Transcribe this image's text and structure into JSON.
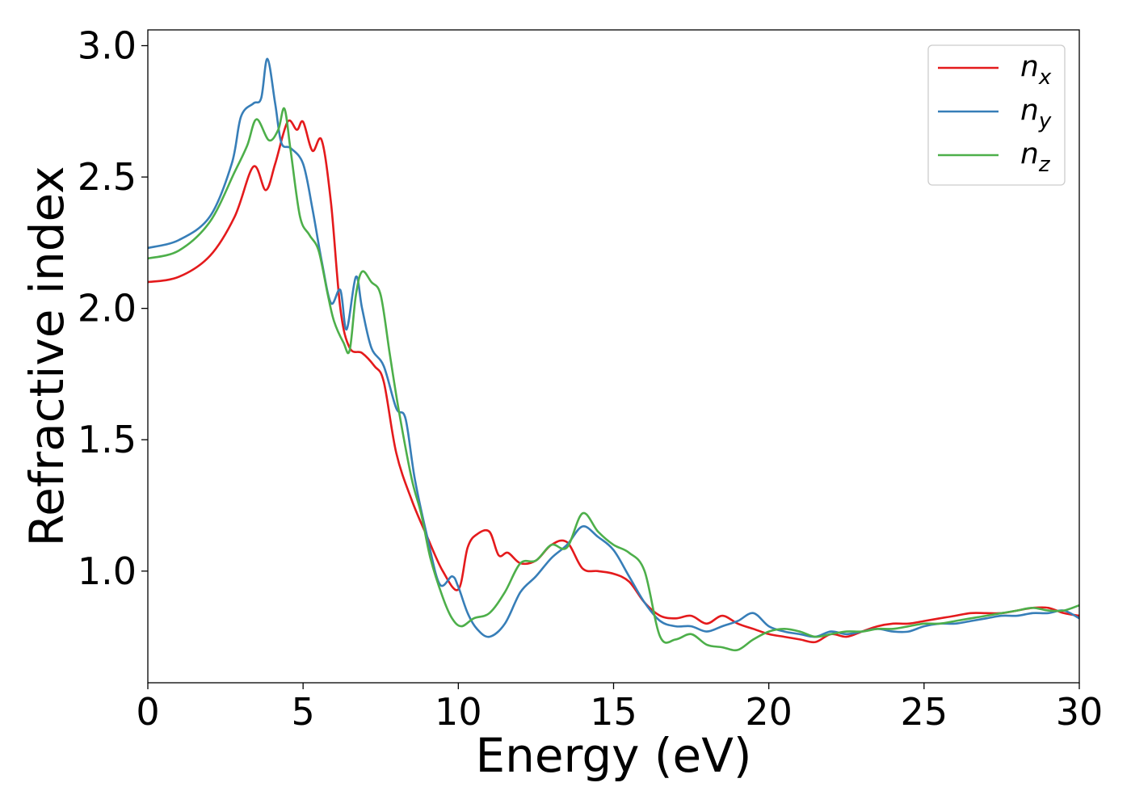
{
  "chart_data": {
    "type": "line",
    "title": "",
    "xlabel": "Energy (eV)",
    "ylabel": "Refractive index",
    "xlim": [
      0,
      30
    ],
    "ylim": [
      0.575,
      3.06
    ],
    "xticks": [
      0,
      5,
      10,
      15,
      20,
      25,
      30
    ],
    "xtick_labels": [
      "0",
      "5",
      "10",
      "15",
      "20",
      "25",
      "30"
    ],
    "yticks": [
      1.0,
      1.5,
      2.0,
      2.5,
      3.0
    ],
    "ytick_labels": [
      "1.0",
      "1.5",
      "2.0",
      "2.5",
      "3.0"
    ],
    "grid": false,
    "legend_position": "top-right",
    "series": [
      {
        "name": "n_x",
        "label_main": "n",
        "label_sub": "x",
        "color": "#e41a1c",
        "points": [
          [
            0,
            2.1
          ],
          [
            1,
            2.12
          ],
          [
            2,
            2.2
          ],
          [
            2.8,
            2.35
          ],
          [
            3.4,
            2.54
          ],
          [
            3.8,
            2.45
          ],
          [
            4.1,
            2.55
          ],
          [
            4.5,
            2.71
          ],
          [
            4.8,
            2.68
          ],
          [
            5.0,
            2.71
          ],
          [
            5.3,
            2.6
          ],
          [
            5.6,
            2.64
          ],
          [
            5.9,
            2.4
          ],
          [
            6.2,
            2.0
          ],
          [
            6.5,
            1.85
          ],
          [
            6.9,
            1.83
          ],
          [
            7.3,
            1.78
          ],
          [
            7.6,
            1.72
          ],
          [
            8.0,
            1.45
          ],
          [
            8.5,
            1.27
          ],
          [
            9.0,
            1.13
          ],
          [
            9.5,
            1.0
          ],
          [
            10.0,
            0.93
          ],
          [
            10.3,
            1.09
          ],
          [
            10.6,
            1.14
          ],
          [
            11.0,
            1.15
          ],
          [
            11.3,
            1.06
          ],
          [
            11.6,
            1.07
          ],
          [
            12.0,
            1.03
          ],
          [
            12.5,
            1.04
          ],
          [
            13.0,
            1.1
          ],
          [
            13.5,
            1.11
          ],
          [
            14.0,
            1.01
          ],
          [
            14.5,
            1.0
          ],
          [
            15.0,
            0.99
          ],
          [
            15.5,
            0.96
          ],
          [
            16.0,
            0.88
          ],
          [
            16.5,
            0.83
          ],
          [
            17.0,
            0.82
          ],
          [
            17.5,
            0.83
          ],
          [
            18.0,
            0.8
          ],
          [
            18.5,
            0.83
          ],
          [
            19.0,
            0.8
          ],
          [
            19.5,
            0.78
          ],
          [
            20.0,
            0.76
          ],
          [
            20.5,
            0.75
          ],
          [
            21.0,
            0.74
          ],
          [
            21.5,
            0.73
          ],
          [
            22.0,
            0.76
          ],
          [
            22.5,
            0.75
          ],
          [
            23.0,
            0.77
          ],
          [
            23.5,
            0.79
          ],
          [
            24.0,
            0.8
          ],
          [
            24.5,
            0.8
          ],
          [
            25.0,
            0.81
          ],
          [
            25.5,
            0.82
          ],
          [
            26.0,
            0.83
          ],
          [
            26.5,
            0.84
          ],
          [
            27.0,
            0.84
          ],
          [
            27.5,
            0.84
          ],
          [
            28.0,
            0.85
          ],
          [
            28.5,
            0.86
          ],
          [
            29.0,
            0.86
          ],
          [
            29.5,
            0.84
          ],
          [
            30.0,
            0.83
          ]
        ]
      },
      {
        "name": "n_y",
        "label_main": "n",
        "label_sub": "y",
        "color": "#377eb8",
        "points": [
          [
            0,
            2.23
          ],
          [
            1,
            2.26
          ],
          [
            2,
            2.35
          ],
          [
            2.7,
            2.55
          ],
          [
            3.0,
            2.73
          ],
          [
            3.4,
            2.78
          ],
          [
            3.65,
            2.8
          ],
          [
            3.85,
            2.95
          ],
          [
            4.1,
            2.78
          ],
          [
            4.3,
            2.63
          ],
          [
            4.6,
            2.61
          ],
          [
            5.0,
            2.55
          ],
          [
            5.3,
            2.38
          ],
          [
            5.6,
            2.18
          ],
          [
            5.9,
            2.02
          ],
          [
            6.2,
            2.07
          ],
          [
            6.4,
            1.92
          ],
          [
            6.7,
            2.12
          ],
          [
            6.9,
            2.0
          ],
          [
            7.2,
            1.85
          ],
          [
            7.6,
            1.78
          ],
          [
            8.0,
            1.62
          ],
          [
            8.3,
            1.58
          ],
          [
            8.6,
            1.35
          ],
          [
            9.0,
            1.13
          ],
          [
            9.4,
            0.95
          ],
          [
            9.8,
            0.98
          ],
          [
            10.0,
            0.94
          ],
          [
            10.3,
            0.84
          ],
          [
            10.6,
            0.78
          ],
          [
            11.0,
            0.75
          ],
          [
            11.5,
            0.8
          ],
          [
            12.0,
            0.92
          ],
          [
            12.5,
            0.98
          ],
          [
            13.0,
            1.05
          ],
          [
            13.5,
            1.1
          ],
          [
            14.0,
            1.17
          ],
          [
            14.5,
            1.13
          ],
          [
            15.0,
            1.08
          ],
          [
            15.5,
            0.98
          ],
          [
            16.0,
            0.88
          ],
          [
            16.5,
            0.81
          ],
          [
            17.0,
            0.79
          ],
          [
            17.5,
            0.79
          ],
          [
            18.0,
            0.77
          ],
          [
            18.5,
            0.79
          ],
          [
            19.0,
            0.81
          ],
          [
            19.5,
            0.84
          ],
          [
            20.0,
            0.79
          ],
          [
            20.5,
            0.77
          ],
          [
            21.0,
            0.76
          ],
          [
            21.5,
            0.75
          ],
          [
            22.0,
            0.77
          ],
          [
            22.5,
            0.76
          ],
          [
            23.0,
            0.77
          ],
          [
            23.5,
            0.78
          ],
          [
            24.0,
            0.77
          ],
          [
            24.5,
            0.77
          ],
          [
            25.0,
            0.79
          ],
          [
            25.5,
            0.8
          ],
          [
            26.0,
            0.8
          ],
          [
            26.5,
            0.81
          ],
          [
            27.0,
            0.82
          ],
          [
            27.5,
            0.83
          ],
          [
            28.0,
            0.83
          ],
          [
            28.5,
            0.84
          ],
          [
            29.0,
            0.84
          ],
          [
            29.5,
            0.85
          ],
          [
            30.0,
            0.82
          ]
        ]
      },
      {
        "name": "n_z",
        "label_main": "n",
        "label_sub": "z",
        "color": "#4daf4a",
        "points": [
          [
            0,
            2.19
          ],
          [
            1,
            2.22
          ],
          [
            2,
            2.33
          ],
          [
            2.8,
            2.52
          ],
          [
            3.2,
            2.62
          ],
          [
            3.5,
            2.72
          ],
          [
            3.9,
            2.64
          ],
          [
            4.2,
            2.68
          ],
          [
            4.4,
            2.76
          ],
          [
            4.6,
            2.6
          ],
          [
            4.9,
            2.35
          ],
          [
            5.2,
            2.28
          ],
          [
            5.5,
            2.22
          ],
          [
            5.8,
            2.05
          ],
          [
            6.0,
            1.95
          ],
          [
            6.3,
            1.87
          ],
          [
            6.5,
            1.84
          ],
          [
            6.7,
            2.05
          ],
          [
            6.9,
            2.14
          ],
          [
            7.2,
            2.1
          ],
          [
            7.5,
            2.05
          ],
          [
            7.8,
            1.82
          ],
          [
            8.1,
            1.6
          ],
          [
            8.5,
            1.35
          ],
          [
            8.8,
            1.22
          ],
          [
            9.1,
            1.05
          ],
          [
            9.5,
            0.9
          ],
          [
            9.8,
            0.82
          ],
          [
            10.1,
            0.79
          ],
          [
            10.5,
            0.82
          ],
          [
            11.0,
            0.84
          ],
          [
            11.5,
            0.92
          ],
          [
            12.0,
            1.03
          ],
          [
            12.5,
            1.04
          ],
          [
            13.0,
            1.1
          ],
          [
            13.5,
            1.09
          ],
          [
            14.0,
            1.22
          ],
          [
            14.5,
            1.15
          ],
          [
            15.0,
            1.1
          ],
          [
            15.5,
            1.07
          ],
          [
            16.0,
            1.0
          ],
          [
            16.5,
            0.75
          ],
          [
            17.0,
            0.74
          ],
          [
            17.5,
            0.76
          ],
          [
            18.0,
            0.72
          ],
          [
            18.5,
            0.71
          ],
          [
            19.0,
            0.7
          ],
          [
            19.5,
            0.74
          ],
          [
            20.0,
            0.77
          ],
          [
            20.5,
            0.78
          ],
          [
            21.0,
            0.77
          ],
          [
            21.5,
            0.75
          ],
          [
            22.0,
            0.76
          ],
          [
            22.5,
            0.77
          ],
          [
            23.0,
            0.77
          ],
          [
            23.5,
            0.78
          ],
          [
            24.0,
            0.78
          ],
          [
            24.5,
            0.79
          ],
          [
            25.0,
            0.8
          ],
          [
            25.5,
            0.8
          ],
          [
            26.0,
            0.81
          ],
          [
            26.5,
            0.82
          ],
          [
            27.0,
            0.83
          ],
          [
            27.5,
            0.84
          ],
          [
            28.0,
            0.85
          ],
          [
            28.5,
            0.86
          ],
          [
            29.0,
            0.85
          ],
          [
            29.5,
            0.85
          ],
          [
            30.0,
            0.87
          ]
        ]
      }
    ]
  }
}
